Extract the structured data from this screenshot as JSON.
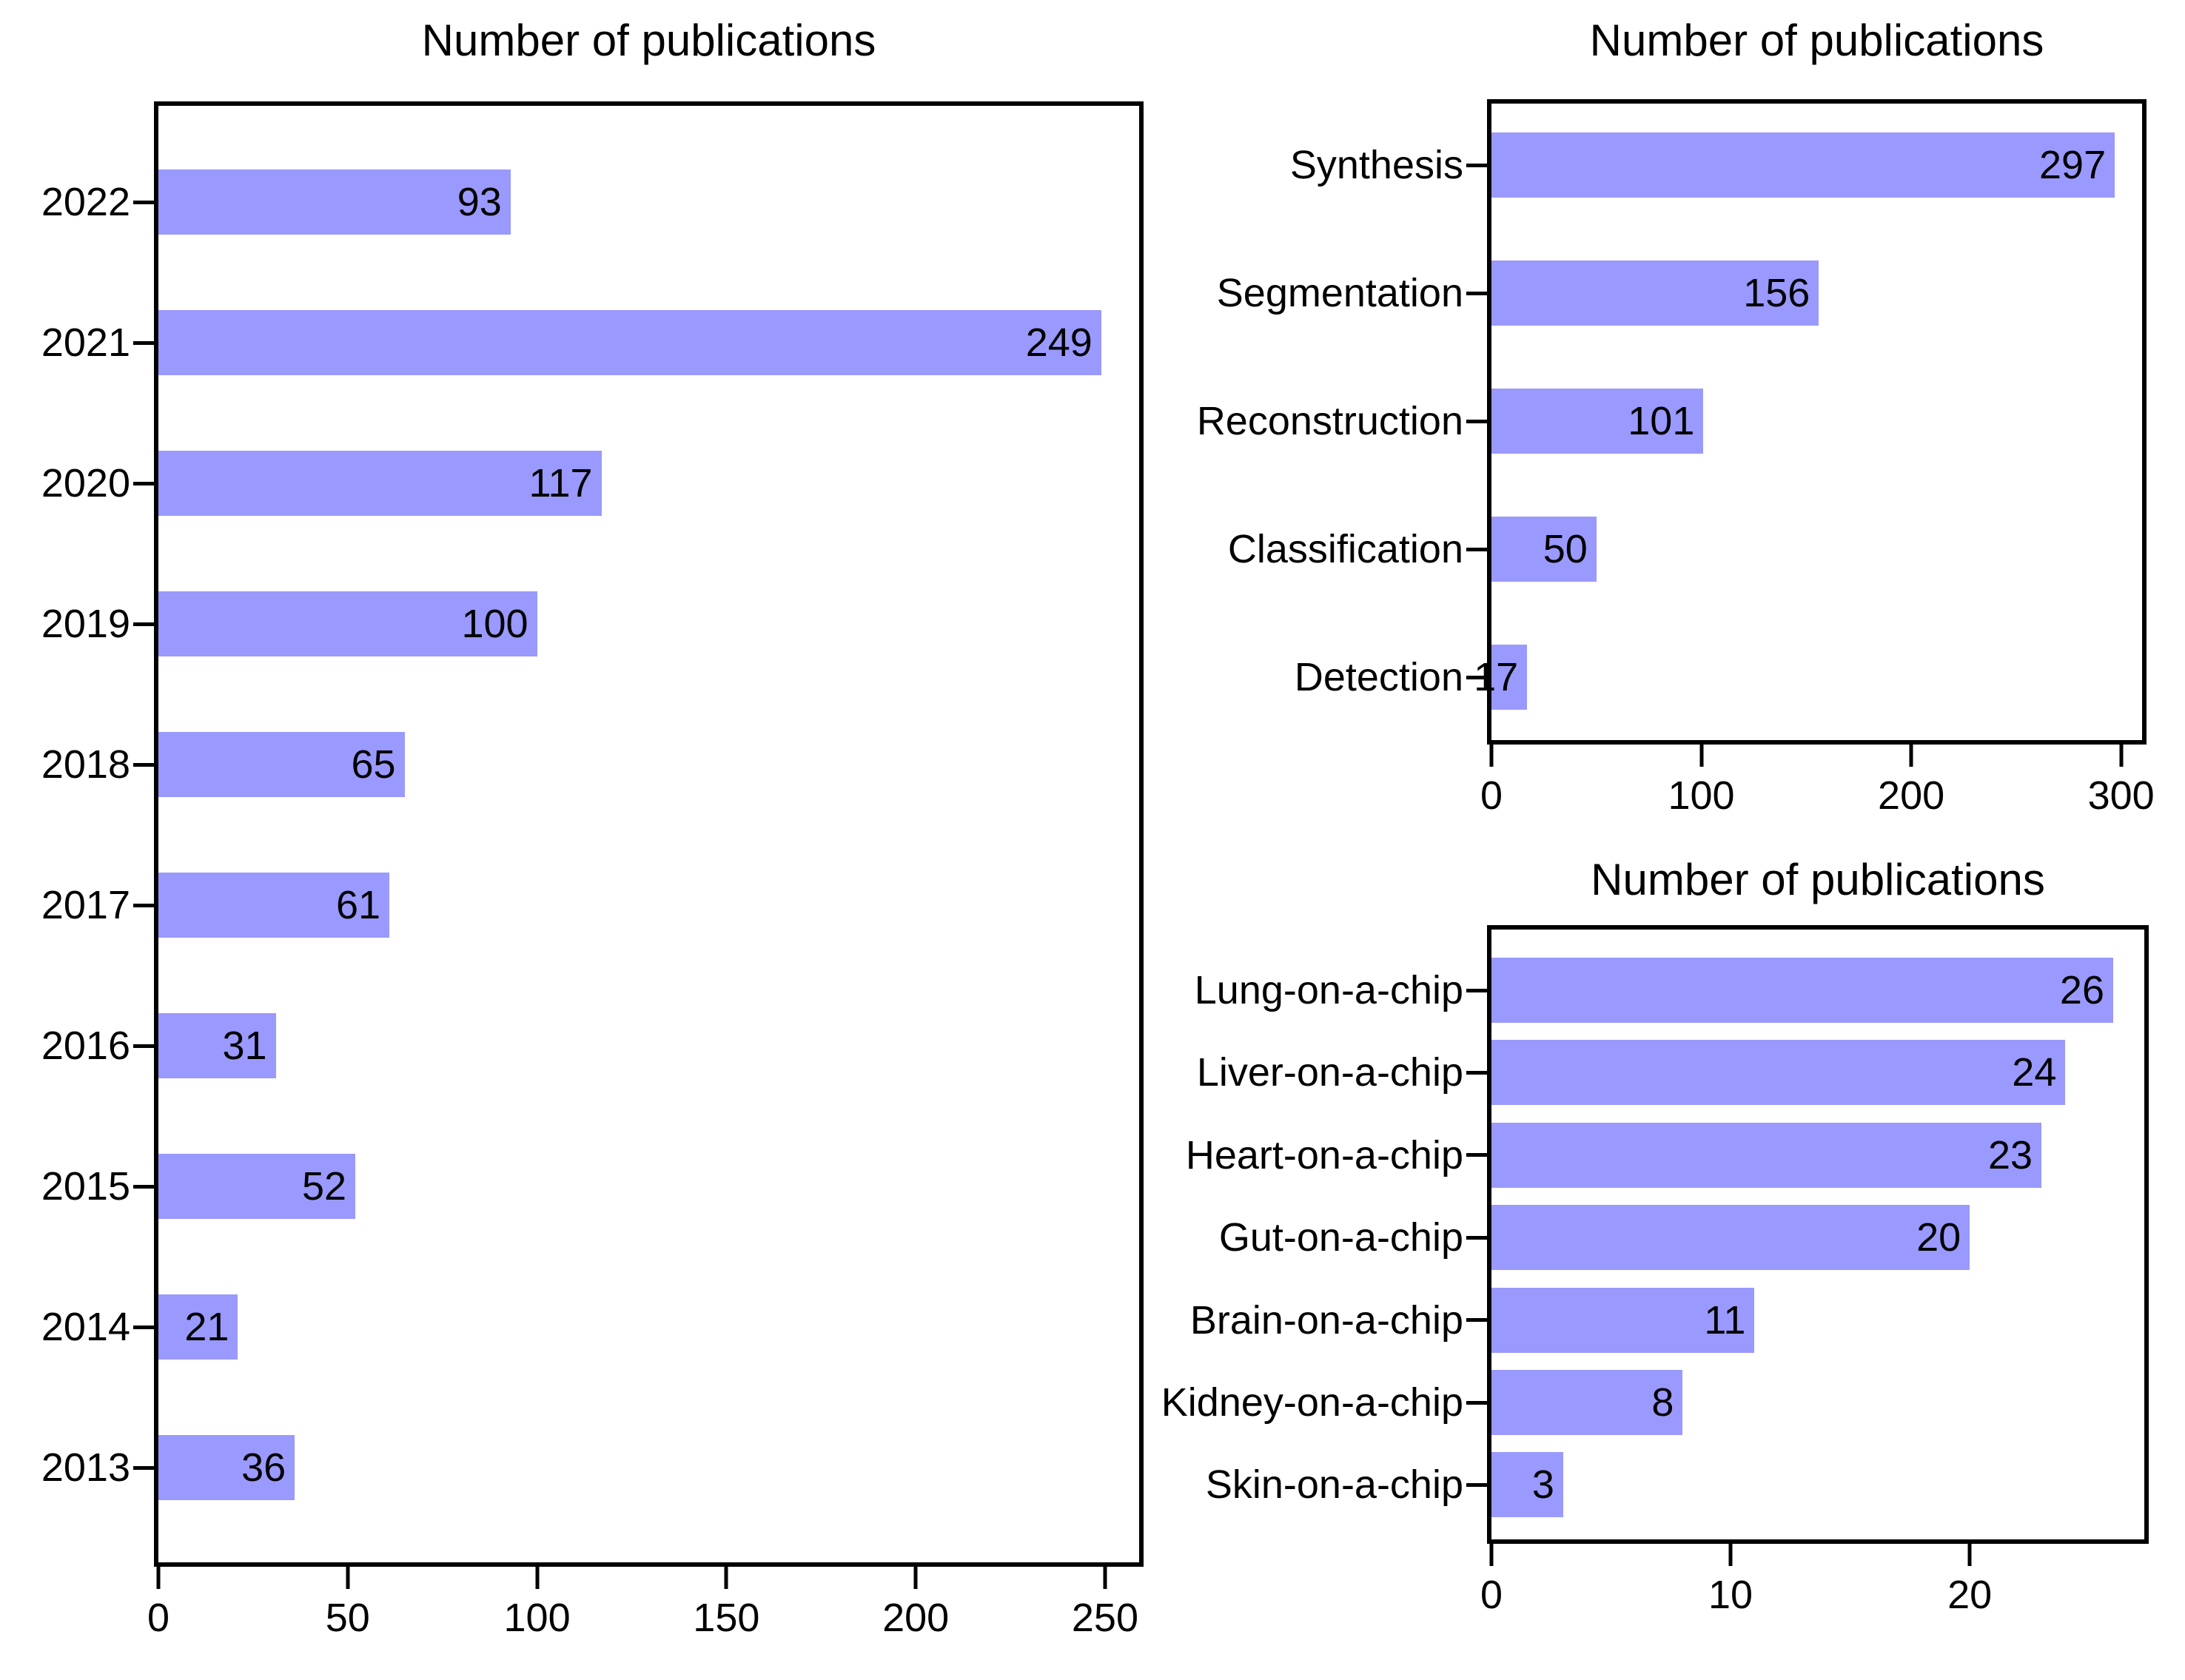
{
  "figure": {
    "background": "#ffffff",
    "bar_color": "#9a99fd",
    "spine_color": "#000000",
    "text_color": "#000000"
  },
  "chart_data": [
    {
      "type": "bar",
      "orientation": "horizontal",
      "title": "Number of publications",
      "categories": [
        "2022",
        "2021",
        "2020",
        "2019",
        "2018",
        "2017",
        "2016",
        "2015",
        "2014",
        "2013"
      ],
      "values": [
        93,
        249,
        117,
        100,
        65,
        61,
        31,
        52,
        21,
        36
      ],
      "xticks": [
        0,
        50,
        100,
        150,
        200,
        250
      ],
      "xlim": [
        0,
        259
      ],
      "grid": false,
      "legend": "none",
      "value_labels": "inside-end"
    },
    {
      "type": "bar",
      "orientation": "horizontal",
      "title": "Number of publications",
      "categories": [
        "Synthesis",
        "Segmentation",
        "Reconstruction",
        "Classification",
        "Detection"
      ],
      "values": [
        297,
        156,
        101,
        50,
        17
      ],
      "xticks": [
        0,
        100,
        200,
        300
      ],
      "xlim": [
        0,
        310
      ],
      "grid": false,
      "legend": "none",
      "value_labels": "inside-end"
    },
    {
      "type": "bar",
      "orientation": "horizontal",
      "title": "Number of publications",
      "categories": [
        "Lung-on-a-chip",
        "Liver-on-a-chip",
        "Heart-on-a-chip",
        "Gut-on-a-chip",
        "Brain-on-a-chip",
        "Kidney-on-a-chip",
        "Skin-on-a-chip"
      ],
      "values": [
        26,
        24,
        23,
        20,
        11,
        8,
        3
      ],
      "xticks": [
        0,
        10,
        20
      ],
      "xlim": [
        0,
        27.3
      ],
      "grid": false,
      "legend": "none",
      "value_labels": "inside-end"
    }
  ]
}
